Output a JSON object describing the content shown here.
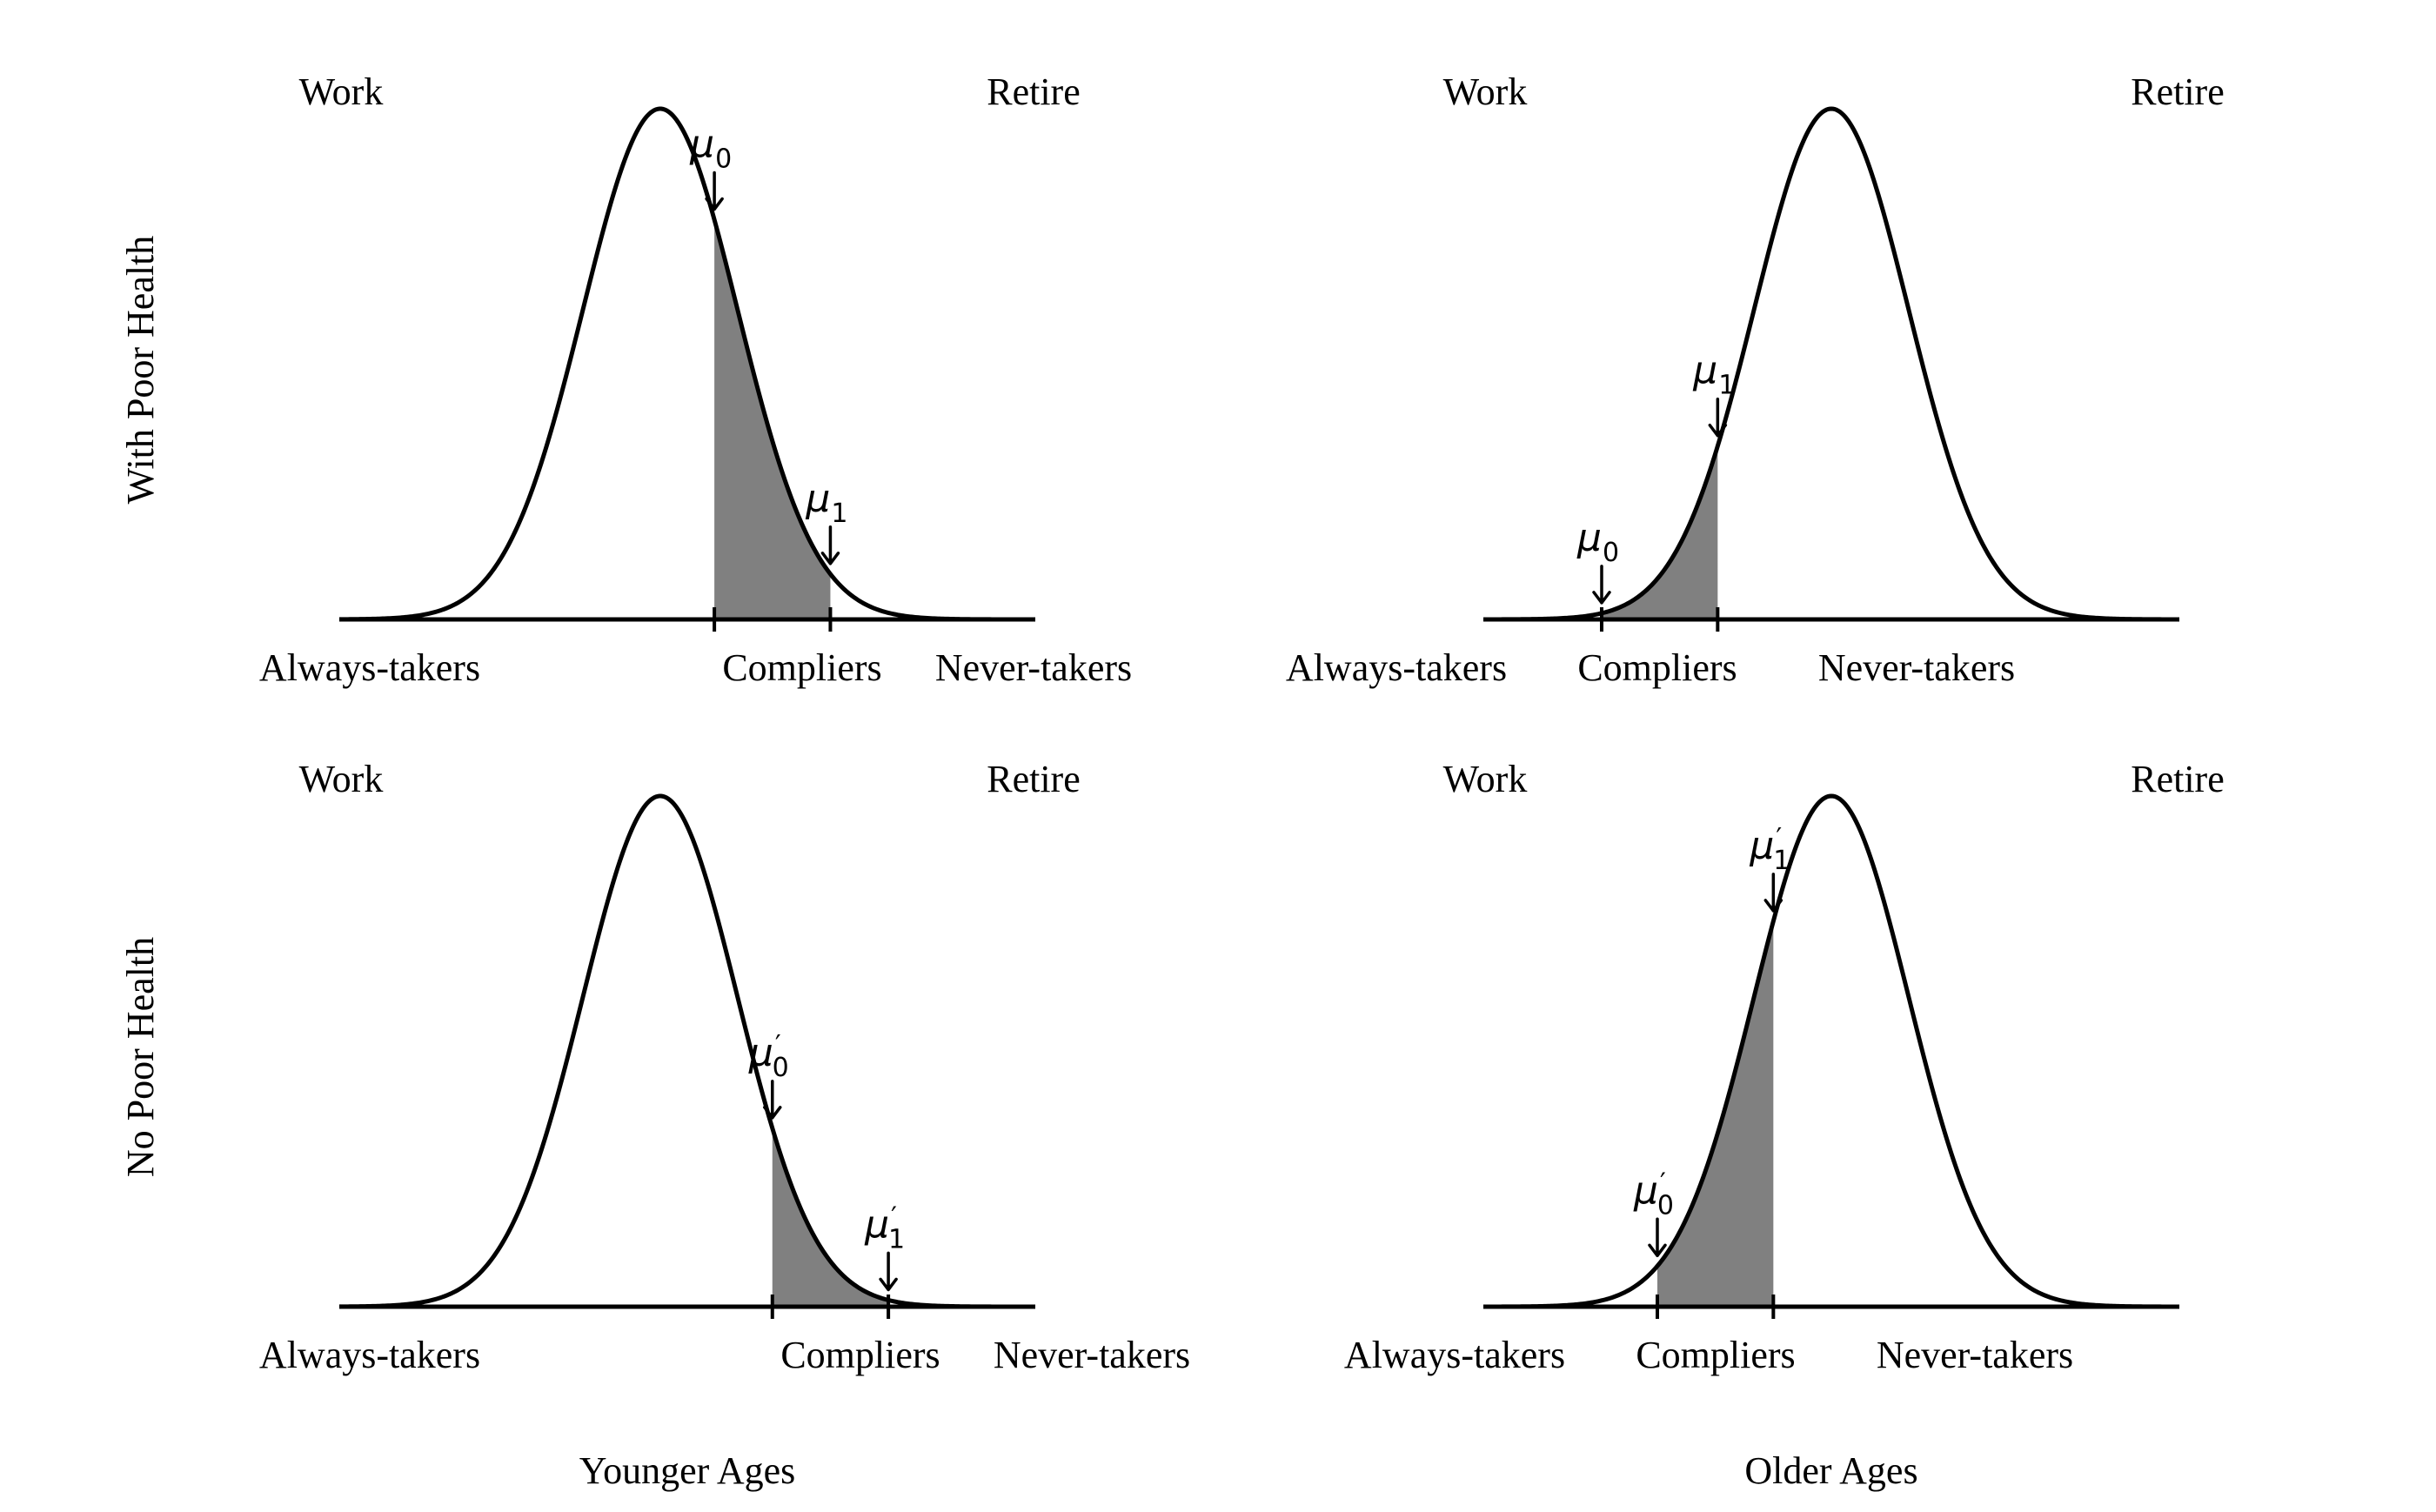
{
  "rows": [
    {
      "label": "With Poor Health"
    },
    {
      "label": "No Poor Health"
    }
  ],
  "columns": [
    {
      "label": "Younger Ages"
    },
    {
      "label": "Older Ages"
    }
  ],
  "panels": [
    {
      "id": "poor-young",
      "left_label": "Work",
      "right_label": "Retire",
      "bottom_labels": [
        "Always-takers",
        "Compliers",
        "Never-takers"
      ],
      "mean": -0.35,
      "cut0": {
        "name": "μ",
        "sub": "0",
        "prime": "",
        "value": 0.35
      },
      "cut1": {
        "name": "μ",
        "sub": "1",
        "prime": "",
        "value": 1.85
      }
    },
    {
      "id": "poor-old",
      "left_label": "Work",
      "right_label": "Retire",
      "bottom_labels": [
        "Always-takers",
        "Compliers",
        "Never-takers"
      ],
      "mean": 0.0,
      "cut0": {
        "name": "μ",
        "sub": "0",
        "prime": "",
        "value": -2.97
      },
      "cut1": {
        "name": "μ",
        "sub": "1",
        "prime": "",
        "value": -1.47
      }
    },
    {
      "id": "nopoor-young",
      "left_label": "Work",
      "right_label": "Retire",
      "bottom_labels": [
        "Always-takers",
        "Compliers",
        "Never-takers"
      ],
      "mean": -0.35,
      "cut0": {
        "name": "μ",
        "sub": "0",
        "prime": "′",
        "value": 1.1
      },
      "cut1": {
        "name": "μ",
        "sub": "1",
        "prime": "′",
        "value": 2.6
      }
    },
    {
      "id": "nopoor-old",
      "left_label": "Work",
      "right_label": "Retire",
      "bottom_labels": [
        "Always-takers",
        "Compliers",
        "Never-takers"
      ],
      "mean": 0.0,
      "cut0": {
        "name": "μ",
        "sub": "0",
        "prime": "′",
        "value": -2.25
      },
      "cut1": {
        "name": "μ",
        "sub": "1",
        "prime": "′",
        "value": -0.75
      }
    }
  ],
  "axis_range": [
    -4.5,
    4.5
  ]
}
